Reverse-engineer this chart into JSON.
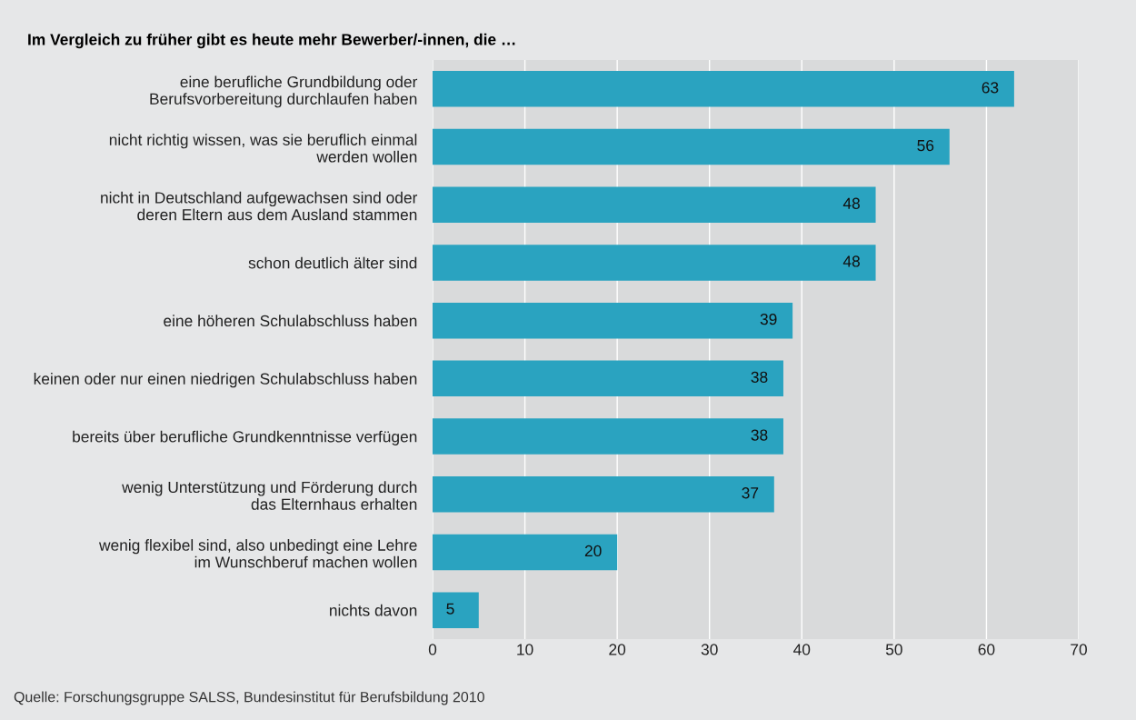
{
  "chart_data": {
    "type": "bar",
    "orientation": "horizontal",
    "title": "Im Vergleich zu früher gibt es heute mehr Bewerber/-innen, die …",
    "categories": [
      "eine berufliche Grundbildung oder\nBerufsvorbereitung durchlaufen haben",
      "nicht richtig wissen, was sie beruflich einmal\nwerden wollen",
      "nicht in Deutschland aufgewachsen sind oder\nderen Eltern aus dem Ausland stammen",
      "schon deutlich älter sind",
      "eine höheren Schulabschluss haben",
      "keinen oder nur einen niedrigen Schulabschluss haben",
      "bereits über berufliche Grundkenntnisse verfügen",
      "wenig Unterstützung und Förderung durch\ndas Elternhaus erhalten",
      "wenig flexibel sind, also unbedingt eine Lehre\nim Wunschberuf machen wollen",
      "nichts davon"
    ],
    "values": [
      63,
      56,
      48,
      48,
      39,
      38,
      38,
      37,
      20,
      5
    ],
    "color": "#2aa3c0",
    "xlim": [
      0,
      70
    ],
    "xticks": [
      0,
      10,
      20,
      30,
      40,
      50,
      60,
      70
    ],
    "grid": "x",
    "data_labels": true,
    "annotations": [
      "Quelle: Forschungsgruppe SALSS, Bundesinstitut für Berufsbildung 2010"
    ]
  }
}
